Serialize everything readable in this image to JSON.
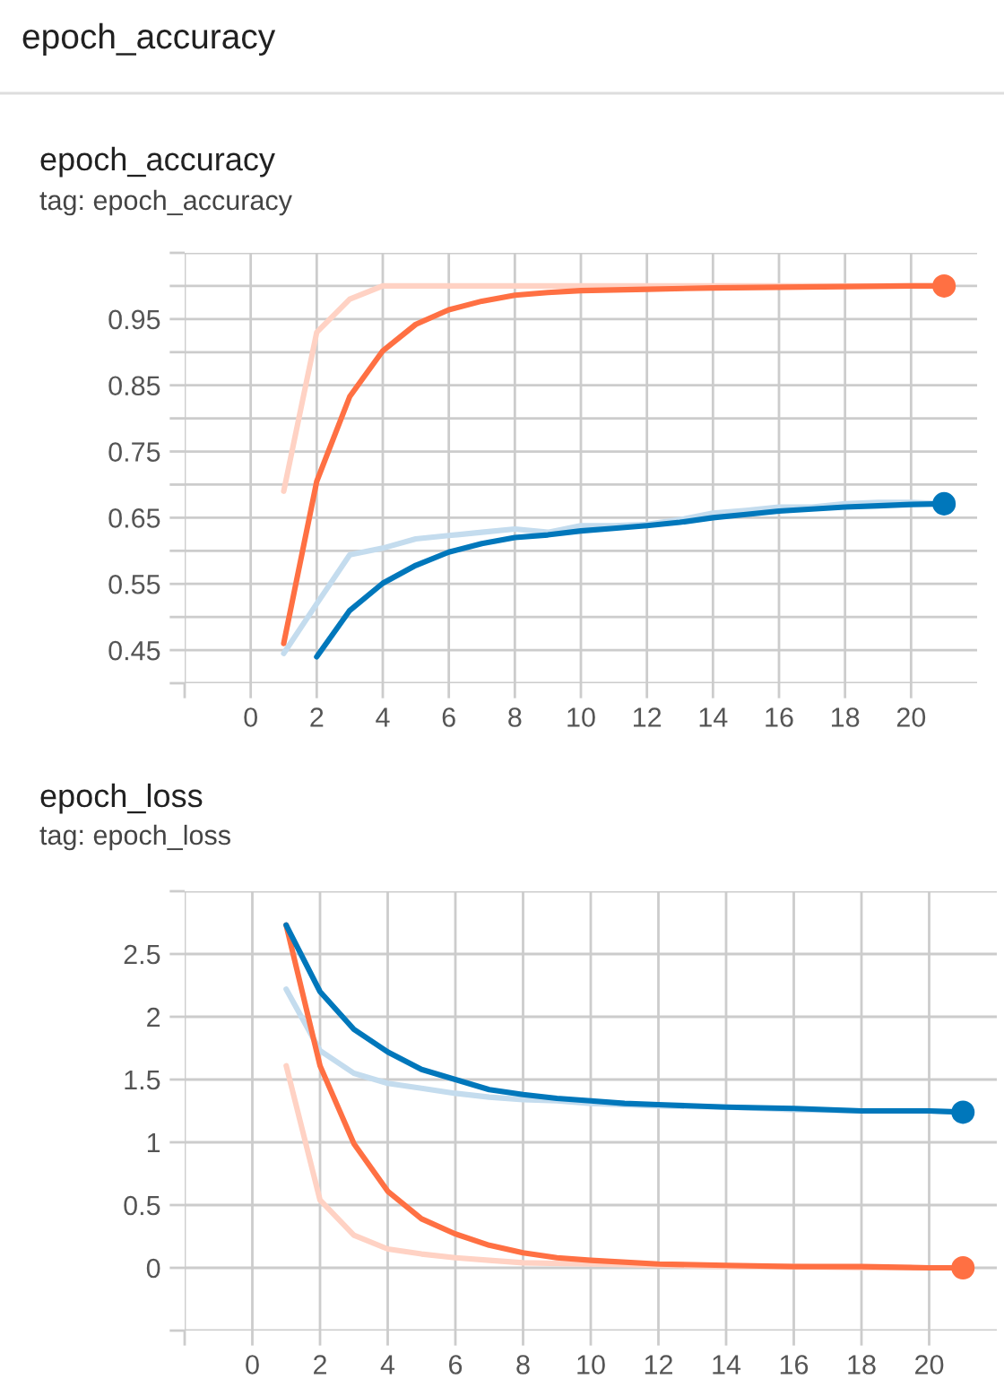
{
  "chart_data": [
    {
      "type": "line",
      "title": "epoch_accuracy",
      "subtitle": "tag: epoch_accuracy",
      "annotations": [
        "epoch_accuracy"
      ],
      "xlim": [
        -2,
        22
      ],
      "ylim": [
        0.4,
        1.05
      ],
      "xticks": [
        {
          "value": -2,
          "label": null
        },
        0,
        2,
        4,
        6,
        8,
        10,
        12,
        14,
        16,
        18,
        20
      ],
      "yticks": [
        {
          "value": 0.4,
          "label": null
        },
        0.45,
        {
          "value": 0.5,
          "label": null
        },
        0.55,
        {
          "value": 0.6,
          "label": null
        },
        0.65,
        {
          "value": 0.7,
          "label": null
        },
        0.75,
        {
          "value": 0.8,
          "label": null
        },
        0.85,
        {
          "value": 0.9,
          "label": null
        },
        0.95,
        {
          "value": 1.0,
          "label": null
        },
        {
          "value": 1.05,
          "label": null
        }
      ],
      "grid": true,
      "series": [
        {
          "color": "#ffd2c4",
          "x": [
            1,
            2,
            3,
            4,
            5,
            6,
            8,
            10,
            12,
            14,
            16,
            18,
            20,
            21
          ],
          "values": [
            0.69,
            0.93,
            0.98,
            1.0,
            1.0,
            1.0,
            1.0,
            1.0,
            1.0,
            1.0,
            1.0,
            1.0,
            1.0,
            1.0
          ]
        },
        {
          "color": "#c4dcee",
          "x": [
            1,
            2,
            3,
            4,
            5,
            6,
            7,
            8,
            9,
            10,
            11,
            12,
            13,
            14,
            15,
            16,
            17,
            18,
            19,
            20,
            21
          ],
          "values": [
            0.445,
            0.52,
            0.594,
            0.604,
            0.618,
            0.623,
            0.628,
            0.633,
            0.628,
            0.638,
            0.638,
            0.64,
            0.647,
            0.657,
            0.661,
            0.666,
            0.666,
            0.671,
            0.673,
            0.673,
            0.671
          ]
        },
        {
          "color": "#ff7043",
          "x": [
            1,
            2,
            3,
            4,
            5,
            6,
            7,
            8,
            9,
            10,
            12,
            14,
            16,
            18,
            20,
            21
          ],
          "values": [
            0.46,
            0.705,
            0.833,
            0.902,
            0.942,
            0.964,
            0.977,
            0.986,
            0.99,
            0.993,
            0.995,
            0.997,
            0.998,
            0.999,
            1.0,
            1.0
          ]
        },
        {
          "color": "#0077bb",
          "x": [
            2,
            3,
            4,
            5,
            6,
            7,
            8,
            9,
            10,
            11,
            12,
            13,
            14,
            15,
            16,
            17,
            18,
            19,
            20,
            21
          ],
          "values": [
            0.44,
            0.51,
            0.551,
            0.578,
            0.598,
            0.611,
            0.62,
            0.624,
            0.63,
            0.634,
            0.638,
            0.643,
            0.65,
            0.655,
            0.66,
            0.663,
            0.666,
            0.668,
            0.67,
            0.671
          ]
        },
        {
          "type": "scatter",
          "color": "#ff7043",
          "x": [
            21
          ],
          "values": [
            1.0
          ]
        },
        {
          "type": "scatter",
          "color": "#0077bb",
          "x": [
            21
          ],
          "values": [
            0.671
          ]
        }
      ]
    },
    {
      "type": "line",
      "title": "epoch_loss",
      "subtitle": "tag: epoch_loss",
      "xlim": [
        -2,
        22
      ],
      "ylim": [
        -0.5,
        3.0
      ],
      "xticks": [
        {
          "value": -2,
          "label": null
        },
        0,
        2,
        4,
        6,
        8,
        10,
        12,
        14,
        16,
        18,
        20
      ],
      "yticks": [
        {
          "value": -0.5,
          "label": null
        },
        0,
        0.5,
        1,
        1.5,
        2,
        2.5,
        {
          "value": 3.0,
          "label": null
        }
      ],
      "grid": true,
      "series": [
        {
          "color": "#ffd2c4",
          "x": [
            1,
            2,
            3,
            4,
            5,
            6,
            7,
            8,
            10,
            12,
            14,
            16,
            18,
            20,
            21
          ],
          "values": [
            1.61,
            0.54,
            0.26,
            0.15,
            0.11,
            0.08,
            0.06,
            0.04,
            0.03,
            0.02,
            0.01,
            0.01,
            0.0,
            0.0,
            0.0
          ]
        },
        {
          "color": "#c4dcee",
          "x": [
            1,
            2,
            3,
            4,
            5,
            6,
            7,
            8,
            9,
            10,
            12,
            14,
            16,
            18,
            20,
            21
          ],
          "values": [
            2.22,
            1.73,
            1.55,
            1.47,
            1.43,
            1.39,
            1.36,
            1.34,
            1.33,
            1.31,
            1.29,
            1.28,
            1.26,
            1.25,
            1.25,
            1.24
          ]
        },
        {
          "color": "#ff7043",
          "x": [
            1,
            2,
            3,
            4,
            5,
            6,
            7,
            8,
            9,
            10,
            12,
            14,
            16,
            18,
            20,
            21
          ],
          "values": [
            2.73,
            1.61,
            0.99,
            0.61,
            0.39,
            0.27,
            0.18,
            0.12,
            0.08,
            0.06,
            0.03,
            0.02,
            0.01,
            0.01,
            0.0,
            0.0
          ]
        },
        {
          "color": "#0077bb",
          "x": [
            1,
            2,
            3,
            4,
            5,
            6,
            7,
            8,
            9,
            10,
            11,
            12,
            14,
            16,
            18,
            20,
            21
          ],
          "values": [
            2.73,
            2.2,
            1.9,
            1.72,
            1.58,
            1.5,
            1.42,
            1.38,
            1.35,
            1.33,
            1.31,
            1.3,
            1.28,
            1.27,
            1.25,
            1.25,
            1.24
          ]
        },
        {
          "type": "scatter",
          "color": "#ff7043",
          "x": [
            21
          ],
          "values": [
            0.0
          ]
        },
        {
          "type": "scatter",
          "color": "#0077bb",
          "x": [
            21
          ],
          "values": [
            1.24
          ]
        }
      ]
    }
  ]
}
